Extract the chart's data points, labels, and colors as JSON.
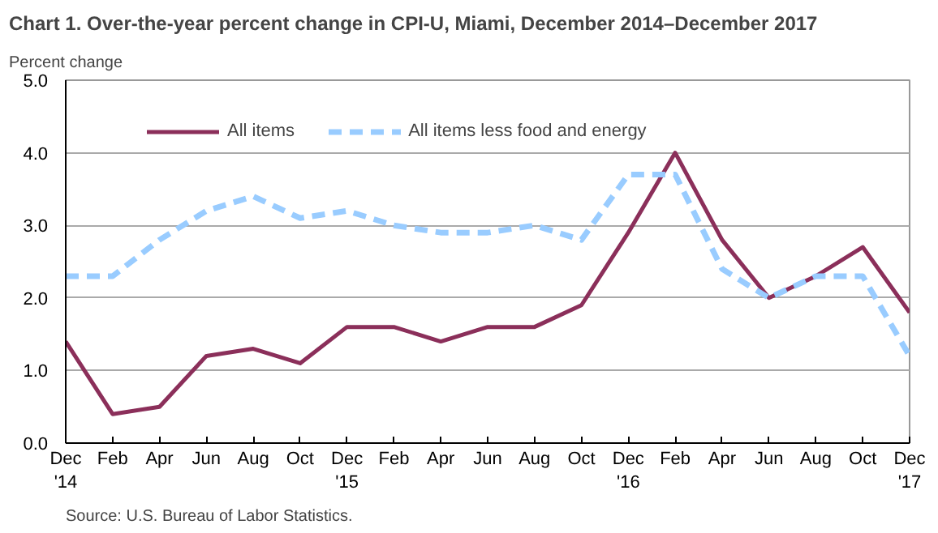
{
  "chart_data": {
    "type": "line",
    "title": "Chart 1. Over-the-year percent change in CPI-U, Miami, December 2014–December 2017",
    "ylabel": "Percent change",
    "categories": [
      "Dec\n'14",
      "Feb",
      "Apr",
      "Jun",
      "Aug",
      "Oct",
      "Dec\n'15",
      "Feb",
      "Apr",
      "Jun",
      "Aug",
      "Oct",
      "Dec\n'16",
      "Feb",
      "Apr",
      "Jun",
      "Aug",
      "Oct",
      "Dec\n'17"
    ],
    "series": [
      {
        "name": "All items",
        "color": "#8b2f5a",
        "line_style": "solid",
        "values": [
          1.4,
          0.4,
          0.5,
          1.2,
          1.3,
          1.1,
          1.6,
          1.6,
          1.4,
          1.6,
          1.6,
          1.9,
          2.9,
          4.0,
          2.8,
          2.0,
          2.3,
          2.7,
          1.8
        ]
      },
      {
        "name": "All items less food and energy",
        "color": "#99ccff",
        "line_style": "dashed",
        "values": [
          2.3,
          2.3,
          2.8,
          3.2,
          3.4,
          3.1,
          3.2,
          3.0,
          2.9,
          2.9,
          3.0,
          2.8,
          3.7,
          3.7,
          2.4,
          2.0,
          2.3,
          2.3,
          1.2
        ]
      }
    ],
    "ylim": [
      0,
      5
    ],
    "yticks": [
      {
        "value": 0,
        "label": "0.0"
      },
      {
        "value": 1,
        "label": "1.0"
      },
      {
        "value": 2,
        "label": "2.0"
      },
      {
        "value": 3,
        "label": "3.0"
      },
      {
        "value": 4,
        "label": "4.0"
      },
      {
        "value": 5,
        "label": "5.0"
      }
    ],
    "grid": "y",
    "legend": "top left",
    "marker": "none",
    "annotations": [
      "Source: U.S. Bureau of Labor Statistics."
    ]
  }
}
